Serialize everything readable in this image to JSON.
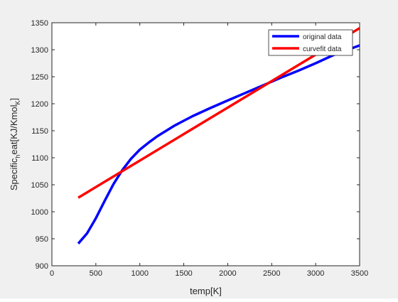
{
  "chart_data": {
    "type": "line",
    "title": "",
    "xlabel": "temp[K]",
    "ylabel_parts": {
      "a": "Specific",
      "b": "h",
      "c": "eat[KJ/Kmol",
      "d": "K",
      "e": "]"
    },
    "xlim": [
      0,
      3500
    ],
    "ylim": [
      900,
      1350
    ],
    "xticks": [
      0,
      500,
      1000,
      1500,
      2000,
      2500,
      3000,
      3500
    ],
    "yticks": [
      900,
      950,
      1000,
      1050,
      1100,
      1150,
      1200,
      1250,
      1300,
      1350
    ],
    "grid": false,
    "legend_position": "top-right",
    "series": [
      {
        "name": "original data",
        "color": "#0000ff",
        "x": [
          300,
          400,
          500,
          600,
          700,
          800,
          900,
          1000,
          1100,
          1200,
          1400,
          1600,
          1800,
          2000,
          2200,
          2400,
          2600,
          2800,
          3000,
          3200,
          3400,
          3500
        ],
        "y": [
          941,
          960,
          988,
          1020,
          1051,
          1077,
          1098,
          1115,
          1128,
          1140,
          1160,
          1177,
          1192,
          1206,
          1220,
          1234,
          1248,
          1261,
          1275,
          1290,
          1302,
          1308
        ]
      },
      {
        "name": "curvefit data",
        "color": "#ff0000",
        "x": [
          300,
          3500
        ],
        "y": [
          1026,
          1340
        ]
      }
    ]
  }
}
